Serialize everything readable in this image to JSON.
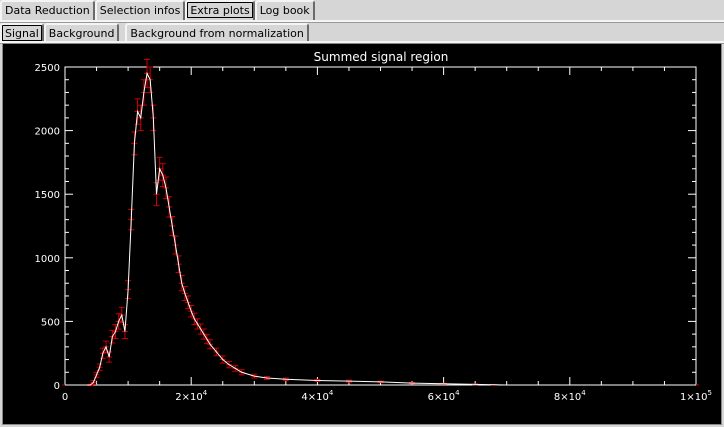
{
  "main_tabs": [
    "Data Reduction",
    "Selection infos",
    "Extra plots",
    "Log book"
  ],
  "active_main_tab": 2,
  "sub_tabs": [
    "Signal",
    "Background",
    "Background from normalization"
  ],
  "active_sub_tab": 0,
  "colors": {
    "background": "#000000",
    "axes": "#ffffff",
    "line": "#ffffff",
    "error_bars": "#cc0000"
  },
  "chart_data": {
    "type": "line",
    "title": "Summed signal region",
    "xlabel": "",
    "ylabel": "",
    "xlim": [
      0,
      100000
    ],
    "ylim": [
      0,
      2500
    ],
    "x_ticks": [
      {
        "value": 0,
        "mantissa": "0",
        "exp": ""
      },
      {
        "value": 20000,
        "mantissa": "2×10",
        "exp": "4"
      },
      {
        "value": 40000,
        "mantissa": "4×10",
        "exp": "4"
      },
      {
        "value": 60000,
        "mantissa": "6×10",
        "exp": "4"
      },
      {
        "value": 80000,
        "mantissa": "8×10",
        "exp": "4"
      },
      {
        "value": 100000,
        "mantissa": "1×10",
        "exp": "5"
      }
    ],
    "y_ticks": [
      0,
      500,
      1000,
      1500,
      2000,
      2500
    ],
    "series": [
      {
        "x": [
          0,
          4000,
          4500,
          5000,
          5500,
          6000,
          6500,
          7000,
          7500,
          8000,
          8500,
          9000,
          9500,
          10000,
          10500,
          11000,
          11500,
          12000,
          12500,
          13000,
          13500,
          14000,
          14500,
          15000,
          15500,
          16000,
          16500,
          17000,
          17500,
          18000,
          18500,
          19000,
          19500,
          20000,
          20500,
          21000,
          21500,
          22000,
          22500,
          23000,
          24000,
          25000,
          26000,
          27000,
          28000,
          30000,
          32000,
          35000,
          40000,
          45000,
          50000,
          55000,
          60000,
          65000,
          68000,
          70000,
          80000,
          100000
        ],
        "y": [
          0,
          0,
          20,
          80,
          140,
          250,
          300,
          220,
          380,
          420,
          500,
          550,
          420,
          750,
          1300,
          1900,
          2150,
          2100,
          2300,
          2450,
          2400,
          2100,
          1500,
          1700,
          1650,
          1550,
          1400,
          1250,
          1100,
          950,
          800,
          720,
          650,
          580,
          520,
          480,
          440,
          400,
          360,
          320,
          260,
          200,
          160,
          130,
          100,
          70,
          55,
          45,
          35,
          30,
          25,
          15,
          10,
          5,
          2,
          0,
          0,
          0
        ],
        "yerr": [
          0,
          5,
          15,
          20,
          25,
          40,
          45,
          40,
          50,
          55,
          60,
          60,
          55,
          70,
          80,
          90,
          100,
          100,
          100,
          110,
          100,
          100,
          90,
          90,
          90,
          85,
          80,
          75,
          70,
          65,
          60,
          55,
          50,
          45,
          45,
          40,
          40,
          40,
          35,
          35,
          30,
          28,
          25,
          22,
          20,
          15,
          12,
          10,
          8,
          8,
          6,
          5,
          4,
          3,
          2,
          0,
          0,
          0
        ]
      }
    ]
  }
}
